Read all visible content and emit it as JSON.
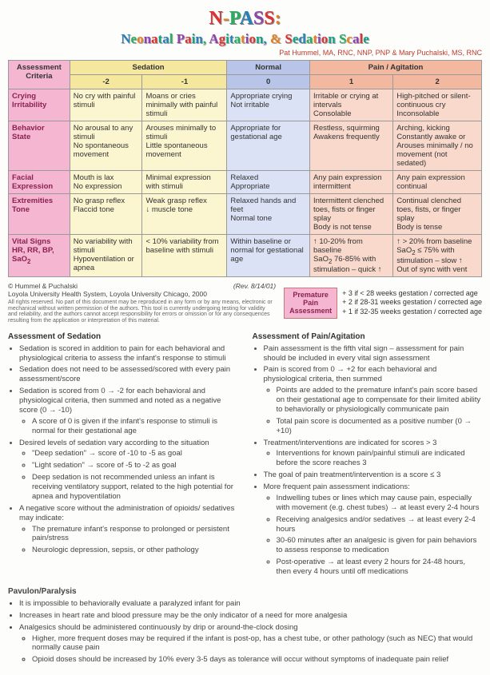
{
  "title": {
    "text": "N-PASS:",
    "colors": [
      "#d33",
      "#e67e22",
      "#27ae60",
      "#2980b9",
      "#8e44ad",
      "#d33",
      "#e67e22"
    ]
  },
  "subtitle": {
    "text": "Neonatal Pain, Agitation, & Sedation Scale"
  },
  "credits": "Pat Hummel, MA, RNC, NNP, PNP & Mary Puchalski, MS, RNC",
  "header": {
    "criteria": "Assessment Criteria",
    "sedation": "Sedation",
    "normal": "Normal",
    "pain": "Pain / Agitation",
    "scores": [
      "-2",
      "-1",
      "0",
      "1",
      "2"
    ]
  },
  "rows": [
    {
      "label": "Crying Irritability",
      "cells": [
        "No cry with painful stimuli",
        "Moans or cries minimally with painful stimuli",
        "Appropriate crying\nNot irritable",
        "Irritable or crying at intervals\nConsolable",
        "High-pitched or silent-continuous cry\nInconsolable"
      ]
    },
    {
      "label": "Behavior State",
      "cells": [
        "No arousal to any stimuli\nNo spontaneous movement",
        "Arouses minimally to stimuli\nLittle spontaneous movement",
        "Appropriate for gestational age",
        "Restless, squirming\nAwakens frequently",
        "Arching, kicking\nConstantly awake or\nArouses minimally / no movement (not sedated)"
      ]
    },
    {
      "label": "Facial Expression",
      "cells": [
        "Mouth is lax\nNo expression",
        "Minimal expression with stimuli",
        "Relaxed\nAppropriate",
        "Any pain expression intermittent",
        "Any pain expression continual"
      ]
    },
    {
      "label": "Extremities Tone",
      "cells": [
        "No grasp reflex\nFlaccid tone",
        "Weak grasp reflex\n↓ muscle tone",
        "Relaxed hands and feet\nNormal tone",
        "Intermittent clenched toes, fists or finger splay\nBody is not tense",
        "Continual clenched toes, fists, or finger splay\nBody is tense"
      ]
    },
    {
      "label": "Vital Signs HR, RR, BP, SaO₂",
      "cells": [
        "No variability with stimuli\nHypoventilation or apnea",
        "< 10% variability from baseline with stimuli",
        "Within baseline or normal for gestational age",
        "↑ 10-20% from baseline\nSaO₂ 76-85% with stimulation – quick ↑",
        "↑ > 20% from baseline\nSaO₂ ≤ 75% with stimulation – slow ↑\nOut of sync with vent"
      ]
    }
  ],
  "copyright": {
    "line1": "© Hummel & Puchalski",
    "rev": "(Rev. 8/14/01)",
    "line2": "Loyola University Health System, Loyola University Chicago, 2000",
    "fineprint": "All rights reserved. No part of this document may be reproduced in any form or by any means, electronic or mechanical without written permission of the authors. This tool is currently undergoing testing for validity and reliability, and the authors cannot accept responsibility for errors or omission or for any consequences resulting from the application or interpretation of this material."
  },
  "premature": {
    "box": "Premature\nPain\nAssessment",
    "lines": [
      "+ 3 if < 28 weeks gestation / corrected age",
      "+ 2 if 28-31 weeks gestation / corrected age",
      "+ 1 if 32-35 weeks gestation / corrected age"
    ]
  },
  "sedation_assessment": {
    "heading": "Assessment of Sedation",
    "items": [
      {
        "t": "Sedation is scored in addition to pain for each behavioral and physiological criteria to assess the infant's response to stimuli"
      },
      {
        "t": "Sedation does not need to be assessed/scored with every pain assessment/score"
      },
      {
        "t": "Sedation is scored from 0 → -2 for each behavioral and physiological criteria, then summed and noted as a negative score (0 → -10)",
        "sub": [
          "A score of 0 is given if the infant's response to stimuli is normal for their gestational age"
        ]
      },
      {
        "t": "Desired levels of sedation vary according to the situation",
        "sub": [
          "\"Deep sedation\" → score of -10 to -5 as goal",
          "\"Light sedation\" → score of -5 to -2 as goal",
          "Deep sedation is not recommended unless an infant is receiving ventilatory support, related to the high potential for apnea and hypoventilation"
        ]
      },
      {
        "t": "A negative score without the administration of opioids/ sedatives may indicate:",
        "sub": [
          "The premature infant's response to prolonged or persistent pain/stress",
          "Neurologic depression, sepsis, or other pathology"
        ]
      }
    ]
  },
  "pain_assessment": {
    "heading": "Assessment of Pain/Agitation",
    "items": [
      {
        "t": "Pain assessment is the fifth vital sign – assessment for pain should be included in every vital sign assessment"
      },
      {
        "t": "Pain is scored from 0 → +2 for each behavioral and physiological criteria, then summed",
        "sub": [
          "Points are added to the premature infant's pain score based on their gestational age to compensate for their limited ability to behaviorally or physiologically communicate pain",
          "Total pain score is documented as a positive number (0 → +10)"
        ]
      },
      {
        "t": "Treatment/interventions are indicated for scores > 3",
        "sub": [
          "Interventions for known pain/painful stimuli are indicated before the score reaches 3"
        ]
      },
      {
        "t": "The goal of pain treatment/intervention is a score ≤ 3"
      },
      {
        "t": "More frequent pain assessment indications:",
        "sub": [
          "Indwelling tubes or lines which may cause pain, especially with movement (e.g. chest tubes) → at least every 2-4 hours",
          "Receiving analgesics and/or sedatives → at least every 2-4 hours",
          "30-60 minutes after an analgesic is given for pain behaviors to assess response to medication",
          "Post-operative → at least every 2 hours for 24-48 hours, then every 4 hours until off medications"
        ]
      }
    ]
  },
  "paralysis": {
    "heading": "Pavulon/Paralysis",
    "items": [
      {
        "t": "It is impossible to behaviorally evaluate a paralyzed infant for pain"
      },
      {
        "t": "Increases in heart rate and blood pressure may be the only indicator of a need for more analgesia"
      },
      {
        "t": "Analgesics should be administered continuously by drip or around-the-clock dosing",
        "sub": [
          "Higher, more frequent doses may be required if the infant is post-op, has a chest tube, or other pathology (such as NEC) that would normally cause pain",
          "Opioid doses should be increased by 10% every 3-5 days as tolerance will occur without symptoms of inadequate pain relief"
        ]
      }
    ]
  }
}
